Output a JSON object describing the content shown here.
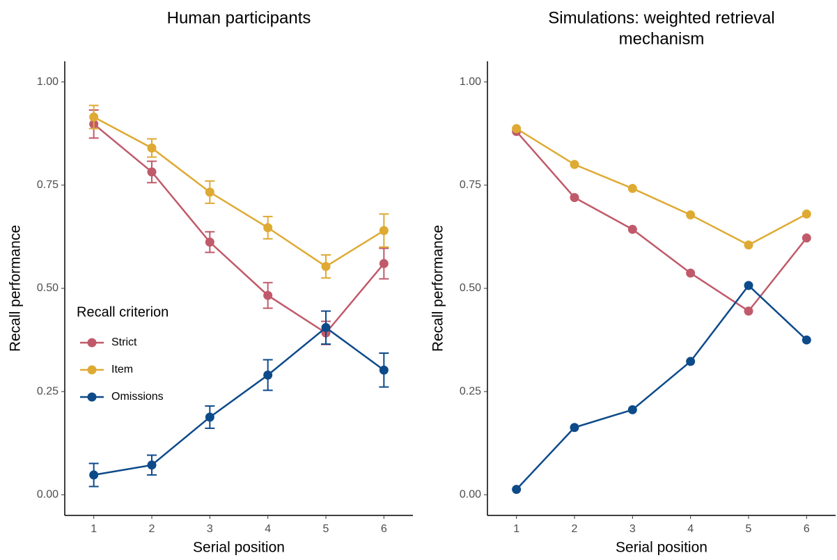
{
  "chart_data": [
    {
      "type": "line",
      "title": [
        "Human participants"
      ],
      "x_label": "Serial position",
      "y_label": "Recall performance",
      "x": [
        1,
        2,
        3,
        4,
        5,
        6
      ],
      "xlim": [
        0.5,
        6.5
      ],
      "xticks": [
        1,
        2,
        3,
        4,
        5,
        6
      ],
      "ylim": [
        -0.05,
        1.05
      ],
      "yticks": [
        {
          "value": 0,
          "label": "0.00"
        },
        {
          "value": 0.25,
          "label": "0.25"
        },
        {
          "value": 0.5,
          "label": "0.50"
        },
        {
          "value": 0.75,
          "label": "0.75"
        },
        {
          "value": 1,
          "label": "1.00"
        }
      ],
      "legend": true,
      "legend_title": "Recall criterion",
      "legend_position": "left",
      "series": [
        {
          "name": "Strict",
          "color": "#c05a6a",
          "values": [
            0.898,
            0.782,
            0.612,
            0.483,
            0.392,
            0.56
          ],
          "errors": [
            0.034,
            0.026,
            0.025,
            0.031,
            0.028,
            0.037
          ]
        },
        {
          "name": "Item",
          "color": "#dfaa33",
          "values": [
            0.915,
            0.84,
            0.733,
            0.647,
            0.553,
            0.64
          ],
          "errors": [
            0.028,
            0.022,
            0.027,
            0.027,
            0.028,
            0.04
          ]
        },
        {
          "name": "Omissions",
          "color": "#0d4a8a",
          "values": [
            0.048,
            0.072,
            0.188,
            0.29,
            0.405,
            0.302
          ],
          "errors": [
            0.028,
            0.024,
            0.027,
            0.037,
            0.04,
            0.041
          ]
        }
      ]
    },
    {
      "type": "line",
      "title": [
        "Simulations: weighted retrieval",
        "mechanism"
      ],
      "x_label": "Serial position",
      "y_label": "Recall performance",
      "x": [
        1,
        2,
        3,
        4,
        5,
        6
      ],
      "xlim": [
        0.5,
        6.5
      ],
      "xticks": [
        1,
        2,
        3,
        4,
        5,
        6
      ],
      "ylim": [
        -0.05,
        1.05
      ],
      "yticks": [
        {
          "value": 0,
          "label": "0.00"
        },
        {
          "value": 0.25,
          "label": "0.25"
        },
        {
          "value": 0.5,
          "label": "0.50"
        },
        {
          "value": 0.75,
          "label": "0.75"
        },
        {
          "value": 1,
          "label": "1.00"
        }
      ],
      "legend": false,
      "series": [
        {
          "name": "Strict",
          "color": "#c05a6a",
          "values": [
            0.88,
            0.72,
            0.643,
            0.537,
            0.445,
            0.622
          ]
        },
        {
          "name": "Item",
          "color": "#dfaa33",
          "values": [
            0.887,
            0.8,
            0.742,
            0.678,
            0.605,
            0.68
          ]
        },
        {
          "name": "Omissions",
          "color": "#0d4a8a",
          "values": [
            0.013,
            0.163,
            0.206,
            0.323,
            0.507,
            0.375
          ]
        }
      ]
    }
  ]
}
